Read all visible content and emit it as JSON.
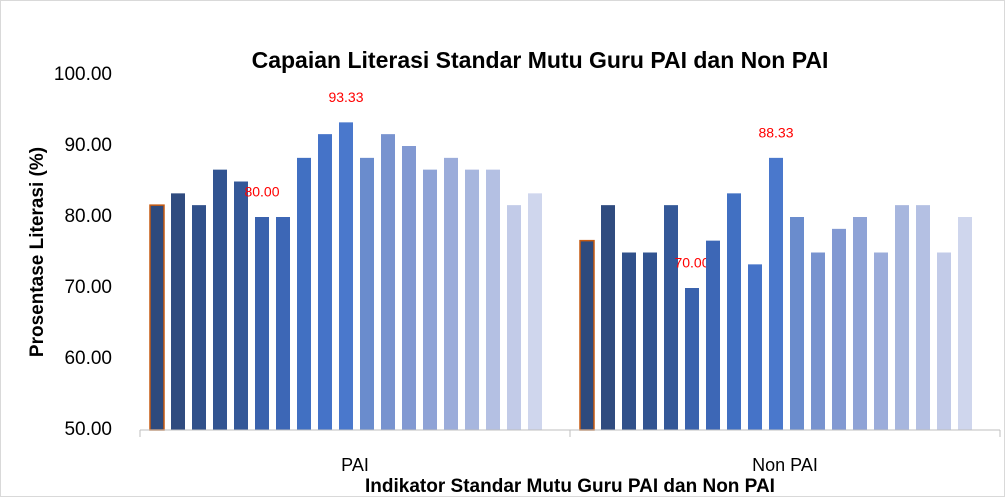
{
  "chart_data": {
    "type": "bar",
    "title": "Capaian Literasi  Standar Mutu Guru PAI dan Non PAI",
    "x_label": "Indikator Standar Mutu Guru PAI dan Non PAI",
    "y_label": "Prosentase Literasi (%)",
    "categories": [
      "PAI",
      "Non PAI"
    ],
    "ylim": [
      50,
      100
    ],
    "yticks": [
      {
        "value": 50,
        "label": "50.00"
      },
      {
        "value": 60,
        "label": "60.00"
      },
      {
        "value": 70,
        "label": "70.00"
      },
      {
        "value": 80,
        "label": "80.00"
      },
      {
        "value": 90,
        "label": "90.00"
      },
      {
        "value": 100,
        "label": "100.00"
      }
    ],
    "grid": false,
    "series": [
      {
        "color": "#2e4a7d",
        "border_color": "#c55a11",
        "values": [
          81.67,
          76.67
        ]
      },
      {
        "color": "#2f4b7f",
        "values": [
          83.33,
          81.67
        ]
      },
      {
        "color": "#30508a",
        "values": [
          81.67,
          75
        ]
      },
      {
        "color": "#325491",
        "values": [
          86.67,
          75
        ]
      },
      {
        "color": "#345898",
        "values": [
          85,
          81.67
        ]
      },
      {
        "color": "#3a62ad",
        "values": [
          80,
          70
        ],
        "value_labels": [
          "80.00",
          "70.00"
        ]
      },
      {
        "color": "#3d67b6",
        "values": [
          80,
          76.67
        ]
      },
      {
        "color": "#4170c2",
        "values": [
          88.33,
          83.33
        ]
      },
      {
        "color": "#4573c8",
        "values": [
          91.67,
          73.33
        ]
      },
      {
        "color": "#4a78cc",
        "values": [
          93.33,
          88.33
        ],
        "value_labels": [
          "93.33",
          "88.33"
        ]
      },
      {
        "color": "#6a8ccd",
        "values": [
          88.33,
          80
        ]
      },
      {
        "color": "#7893cf",
        "values": [
          91.67,
          75
        ]
      },
      {
        "color": "#8299d2",
        "values": [
          90,
          78.33
        ]
      },
      {
        "color": "#8fa3d6",
        "values": [
          86.67,
          80
        ]
      },
      {
        "color": "#9bacda",
        "values": [
          88.33,
          75
        ]
      },
      {
        "color": "#a7b6de",
        "values": [
          86.67,
          81.67
        ]
      },
      {
        "color": "#b4c0e3",
        "values": [
          86.67,
          81.67
        ]
      },
      {
        "color": "#c2cbe8",
        "values": [
          81.67,
          75
        ]
      },
      {
        "color": "#cfd6ed",
        "values": [
          83.33,
          80
        ]
      }
    ]
  }
}
